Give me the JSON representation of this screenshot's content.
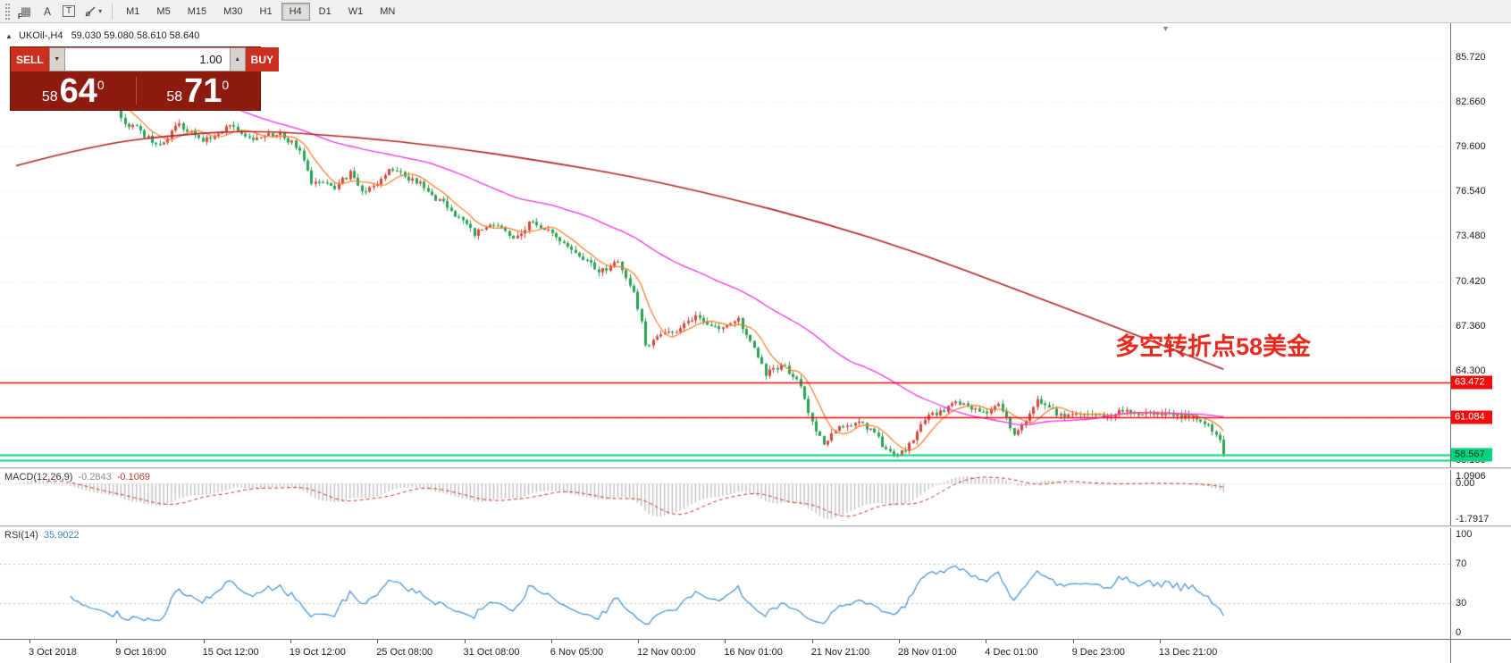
{
  "toolbar": {
    "f_label": "F",
    "grid_glyph": "▦",
    "a_label": "A",
    "t_label": "T",
    "timeframes": [
      "M1",
      "M5",
      "M15",
      "M30",
      "H1",
      "H4",
      "D1",
      "W1",
      "MN"
    ],
    "active_timeframe": "H4"
  },
  "icons": {
    "caret_down": "▾",
    "spinner_down": "▼",
    "spinner_up": "▲",
    "title_marker": "▲",
    "shift_marker": "▼"
  },
  "window": {
    "symbol_title": "UKOil-,H4",
    "ohlc_text": "59.030 59.080 58.610 58.640"
  },
  "trade_panel": {
    "sell_label": "SELL",
    "buy_label": "BUY",
    "volume": "1.00",
    "sell_small": "58",
    "sell_big": "64",
    "sell_sup": "0",
    "buy_small": "58",
    "buy_big": "71",
    "buy_sup": "0"
  },
  "chart": {
    "annotation": "多空转折点58美金",
    "price_axis_labels": [
      "85.720",
      "82.660",
      "79.600",
      "76.540",
      "73.480",
      "70.420",
      "67.360",
      "64.300",
      "61.240",
      "58.180"
    ],
    "hlines": [
      {
        "price": 63.472,
        "label": "63.472",
        "badge": "red"
      },
      {
        "price": 61.084,
        "label": "61.084",
        "badge": "red"
      },
      {
        "price": 58.567,
        "label": "58.567",
        "badge": "green"
      },
      {
        "price": 58.19,
        "label": "",
        "badge": null
      }
    ]
  },
  "macd": {
    "name": "MACD(12,26,9)",
    "value_main": "-0.2843",
    "value_signal": "-0.1069",
    "max_label": "1.0906",
    "zero_label": "0.00",
    "min_label": "-1.7917"
  },
  "rsi": {
    "name": "RSI(14)",
    "value": "35.9022",
    "levels": [
      "100",
      "70",
      "30",
      "0"
    ]
  },
  "time_axis": {
    "labels": [
      "3 Oct 2018",
      "9 Oct 16:00",
      "15 Oct 12:00",
      "19 Oct 12:00",
      "25 Oct 08:00",
      "31 Oct 08:00",
      "6 Nov 05:00",
      "12 Nov 00:00",
      "16 Nov 01:00",
      "21 Nov 21:00",
      "28 Nov 01:00",
      "4 Dec 01:00",
      "9 Dec 23:00",
      "13 Dec 21:00"
    ]
  },
  "chart_data": {
    "type": "candlestick",
    "symbol": "UKOil-",
    "timeframe": "H4",
    "num_candles": 312,
    "visible_price_range": [
      58.18,
      85.72
    ],
    "h_levels": [
      63.472,
      61.084,
      58.567,
      58.19
    ],
    "ma_periods": {
      "fast": 8,
      "medium": 55
    },
    "indicators": {
      "macd": [
        12,
        26,
        9
      ],
      "rsi": 14
    },
    "close_path": [
      [
        0,
        85.0
      ],
      [
        3,
        85.9
      ],
      [
        8,
        85.3
      ],
      [
        14,
        84.3
      ],
      [
        20,
        83.3
      ],
      [
        26,
        82.4
      ],
      [
        28,
        81.1
      ],
      [
        31,
        80.9
      ],
      [
        34,
        80.2
      ],
      [
        37,
        79.8
      ],
      [
        40,
        80.6
      ],
      [
        42,
        81.2
      ],
      [
        45,
        80.5
      ],
      [
        48,
        80.1
      ],
      [
        52,
        80.6
      ],
      [
        55,
        81.0
      ],
      [
        58,
        80.4
      ],
      [
        61,
        80.0
      ],
      [
        64,
        80.3
      ],
      [
        67,
        80.5
      ],
      [
        71,
        79.9
      ],
      [
        74,
        78.8
      ],
      [
        76,
        77.2
      ],
      [
        79,
        77.0
      ],
      [
        82,
        76.8
      ],
      [
        86,
        77.8
      ],
      [
        89,
        76.6
      ],
      [
        92,
        77.0
      ],
      [
        96,
        77.9
      ],
      [
        100,
        77.6
      ],
      [
        104,
        77.0
      ],
      [
        107,
        76.3
      ],
      [
        110,
        75.7
      ],
      [
        113,
        75.0
      ],
      [
        116,
        74.2
      ],
      [
        118,
        73.6
      ],
      [
        121,
        74.0
      ],
      [
        123,
        74.4
      ],
      [
        126,
        73.8
      ],
      [
        128,
        73.4
      ],
      [
        131,
        74.0
      ],
      [
        133,
        74.6
      ],
      [
        136,
        74.0
      ],
      [
        139,
        73.5
      ],
      [
        142,
        72.9
      ],
      [
        145,
        72.3
      ],
      [
        148,
        71.5
      ],
      [
        150,
        71.0
      ],
      [
        153,
        71.5
      ],
      [
        155,
        71.9
      ],
      [
        157,
        70.8
      ],
      [
        159,
        69.5
      ],
      [
        161,
        67.5
      ],
      [
        162,
        65.9
      ],
      [
        164,
        66.3
      ],
      [
        165,
        66.7
      ],
      [
        168,
        66.9
      ],
      [
        170,
        67.1
      ],
      [
        173,
        67.5
      ],
      [
        175,
        67.9
      ],
      [
        178,
        67.6
      ],
      [
        181,
        67.3
      ],
      [
        184,
        67.5
      ],
      [
        186,
        67.8
      ],
      [
        188,
        66.9
      ],
      [
        190,
        66.0
      ],
      [
        193,
        64.1
      ],
      [
        195,
        64.3
      ],
      [
        197,
        64.7
      ],
      [
        199,
        64.2
      ],
      [
        201,
        63.8
      ],
      [
        203,
        62.4
      ],
      [
        205,
        60.7
      ],
      [
        208,
        59.1
      ],
      [
        210,
        59.8
      ],
      [
        212,
        60.4
      ],
      [
        215,
        60.6
      ],
      [
        217,
        60.9
      ],
      [
        220,
        60.2
      ],
      [
        222,
        59.6
      ],
      [
        224,
        58.9
      ],
      [
        226,
        58.4
      ],
      [
        229,
        59.0
      ],
      [
        231,
        59.7
      ],
      [
        233,
        60.5
      ],
      [
        235,
        61.2
      ],
      [
        237,
        61.4
      ],
      [
        239,
        61.6
      ],
      [
        242,
        62.3
      ],
      [
        244,
        62.0
      ],
      [
        246,
        61.8
      ],
      [
        248,
        61.6
      ],
      [
        250,
        61.4
      ],
      [
        253,
        61.9
      ],
      [
        255,
        61.0
      ],
      [
        257,
        59.9
      ],
      [
        259,
        60.5
      ],
      [
        260,
        61.0
      ],
      [
        262,
        61.9
      ],
      [
        263,
        62.4
      ],
      [
        265,
        62.0
      ],
      [
        266,
        61.7
      ],
      [
        268,
        61.4
      ],
      [
        270,
        61.2
      ],
      [
        273,
        61.3
      ],
      [
        275,
        61.5
      ],
      [
        278,
        61.3
      ],
      [
        280,
        61.1
      ],
      [
        283,
        61.4
      ],
      [
        285,
        61.6
      ],
      [
        288,
        61.4
      ],
      [
        290,
        61.3
      ],
      [
        293,
        61.4
      ],
      [
        295,
        61.4
      ],
      [
        298,
        61.3
      ],
      [
        300,
        61.2
      ],
      [
        303,
        61.1
      ],
      [
        305,
        61.0
      ],
      [
        308,
        60.3
      ],
      [
        310,
        59.4
      ],
      [
        311,
        58.7
      ]
    ],
    "slow_ma_path": [
      [
        0,
        78.3
      ],
      [
        21,
        79.8
      ],
      [
        45,
        80.5
      ],
      [
        62,
        80.7
      ],
      [
        86,
        80.3
      ],
      [
        111,
        79.6
      ],
      [
        136,
        78.6
      ],
      [
        158,
        77.6
      ],
      [
        182,
        76.2
      ],
      [
        208,
        74.4
      ],
      [
        233,
        72.3
      ],
      [
        258,
        69.8
      ],
      [
        284,
        67.2
      ],
      [
        311,
        64.4
      ]
    ],
    "colors": {
      "up": "#d8453c",
      "down": "#2aa153",
      "ma_fast": "#ff7a21",
      "ma_medium": "#f231e8",
      "ma_slow": "#b32121",
      "macd_hist": "#bdbdbd",
      "macd_signal": "#d03030",
      "rsi_line": "#4090d8",
      "hline_red": "#f40b0b",
      "hline_green": "#00d57e",
      "grid": "#ededed"
    }
  }
}
